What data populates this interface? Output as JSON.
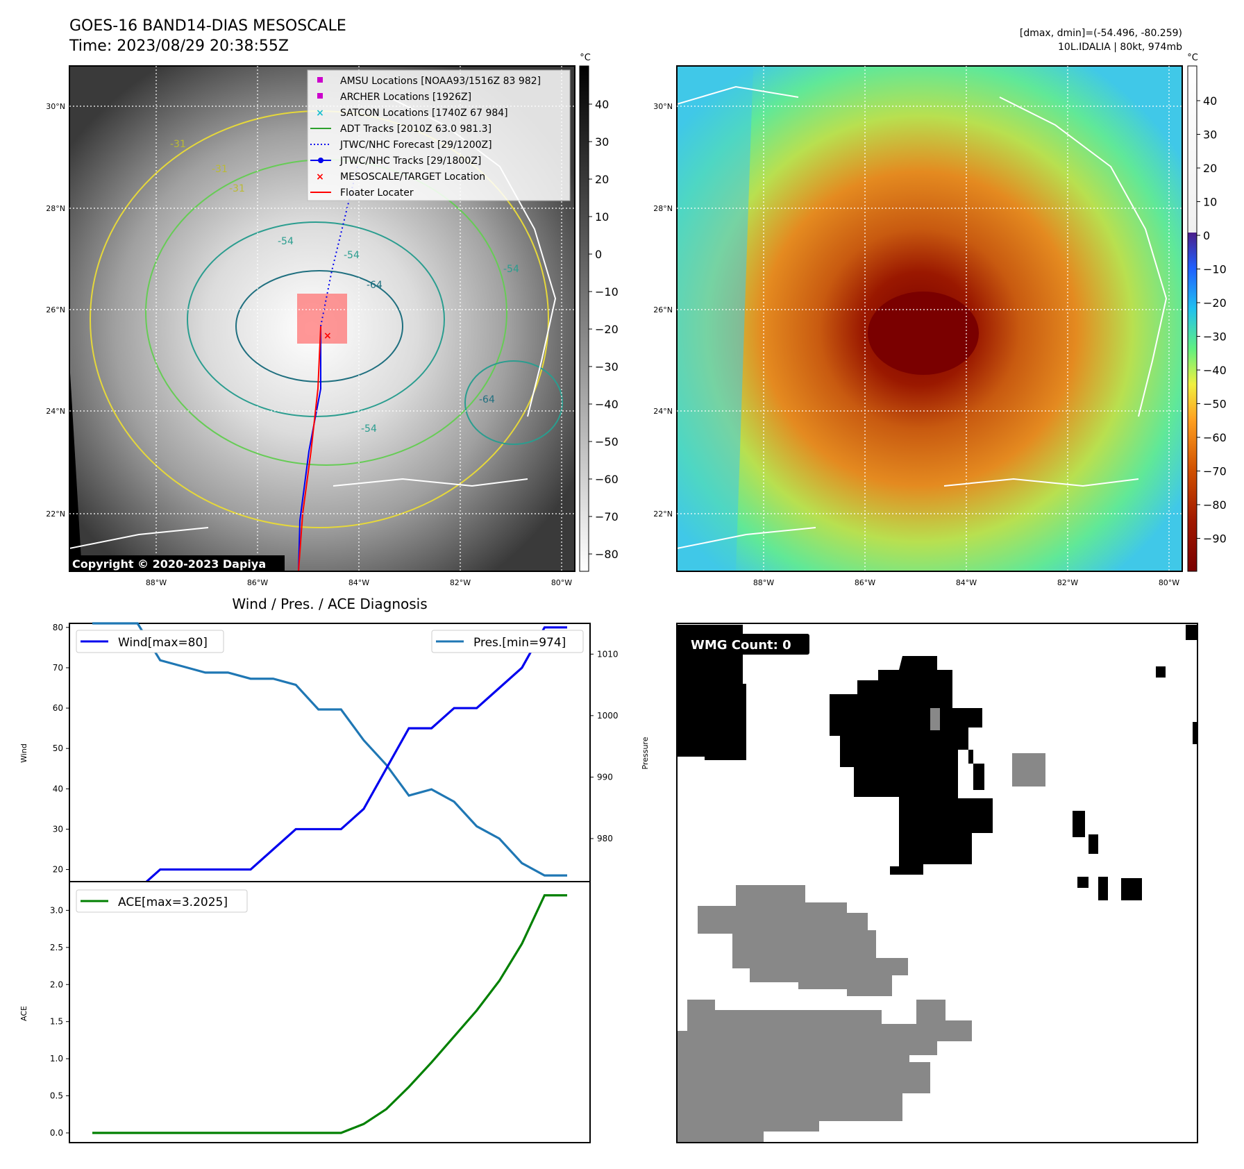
{
  "header": {
    "title_line1": "GOES-16 BAND14-DIAS MESOSCALE",
    "title_line2": "Time: 2023/08/29 20:38:55Z",
    "right_line1": "[dmax, dmin]=(-54.496, -80.259)",
    "right_line2": "10L.IDALIA | 80kt, 974mb"
  },
  "colors": {
    "wind": "#0000ee",
    "pressure": "#1f77b4",
    "ace": "#008000",
    "amsu": "#cc00cc",
    "satcon": "#17becf",
    "adt": "#2ca02c",
    "target": "#ff0000",
    "wmg_black": "#000000",
    "wmg_gray": "#888888"
  },
  "copyright": "Copyright © 2020-2023 Dapiya",
  "maps": {
    "lon_ticks": [
      "88°W",
      "86°W",
      "84°W",
      "82°W",
      "80°W"
    ],
    "lat_ticks": [
      "30°N",
      "28°N",
      "26°N",
      "24°N",
      "22°N"
    ],
    "colorbar_unit": "°C",
    "left_colorbar_ticks": [
      "40",
      "30",
      "20",
      "10",
      "0",
      "−10",
      "−20",
      "−30",
      "−40",
      "−50",
      "−60",
      "−70",
      "−80"
    ],
    "right_colorbar_ticks": [
      "40",
      "30",
      "20",
      "10",
      "0",
      "−10",
      "−20",
      "−30",
      "−40",
      "−50",
      "−60",
      "−70",
      "−80",
      "−90"
    ],
    "contour_labels": [
      "-31",
      "-31",
      "-54",
      "-54",
      "-64",
      "-54",
      "-64",
      "-54",
      "-31"
    ],
    "legend": [
      {
        "label": "AMSU Locations [NOAA93/1516Z 83 982]",
        "marker": "square",
        "color": "#cc00cc"
      },
      {
        "label": "ARCHER Locations [1926Z]",
        "marker": "square",
        "color": "#cc00cc"
      },
      {
        "label": "SATCON Locations [1740Z 67 984]",
        "marker": "x",
        "color": "#17becf"
      },
      {
        "label": "ADT Tracks [2010Z 63.0 981.3]",
        "marker": "line",
        "color": "#2ca02c"
      },
      {
        "label": "JTWC/NHC Forecast [29/1200Z]",
        "marker": "dotted",
        "color": "#0000ee"
      },
      {
        "label": "JTWC/NHC Tracks [29/1800Z]",
        "marker": "line-dot",
        "color": "#0000ee"
      },
      {
        "label": "MESOSCALE/TARGET Location",
        "marker": "x",
        "color": "#ff0000"
      },
      {
        "label": "Floater Locater",
        "marker": "line",
        "color": "#ff0000"
      }
    ]
  },
  "wmg": {
    "label": "WMG Count: 0"
  },
  "chart_data": [
    {
      "type": "line",
      "title": "Wind / Pres. / ACE Diagnosis",
      "ylabel": "Wind",
      "y2label": "Pressure",
      "x": [
        0,
        1,
        2,
        3,
        4,
        5,
        6,
        7,
        8,
        9,
        10,
        11,
        12,
        13,
        14,
        15,
        16,
        17,
        18,
        19,
        20,
        21
      ],
      "series": [
        {
          "name": "Wind[max=80]",
          "axis": "left",
          "values": [
            15,
            15,
            15,
            20,
            20,
            20,
            20,
            20,
            25,
            30,
            30,
            30,
            35,
            45,
            55,
            55,
            60,
            60,
            65,
            70,
            80,
            80
          ]
        },
        {
          "name": "Pres.[min=974]",
          "axis": "right",
          "values": [
            1015,
            1015,
            1015,
            1009,
            1008,
            1007,
            1007,
            1006,
            1006,
            1005,
            1001,
            1001,
            996,
            992,
            987,
            988,
            986,
            982,
            980,
            976,
            974,
            974
          ]
        }
      ],
      "ylim": [
        17,
        81
      ],
      "y2lim": [
        973,
        1015
      ],
      "yticks": [
        20,
        30,
        40,
        50,
        60,
        70,
        80
      ],
      "y2ticks": [
        980,
        990,
        1000,
        1010
      ],
      "legend": [
        "top-left",
        "top-right"
      ]
    },
    {
      "type": "line",
      "ylabel": "ACE",
      "x": [
        0,
        1,
        2,
        3,
        4,
        5,
        6,
        7,
        8,
        9,
        10,
        11,
        12,
        13,
        14,
        15,
        16,
        17,
        18,
        19,
        20,
        21
      ],
      "series": [
        {
          "name": "ACE[max=3.2025]",
          "values": [
            0,
            0,
            0,
            0,
            0,
            0,
            0,
            0,
            0,
            0,
            0,
            0,
            0.12,
            0.32,
            0.62,
            0.95,
            1.3,
            1.65,
            2.05,
            2.55,
            3.2025,
            3.2025
          ]
        }
      ],
      "ylim": [
        0,
        3.2
      ],
      "yticks": [
        "0.0",
        "0.5",
        "1.0",
        "1.5",
        "2.0",
        "2.5",
        "3.0"
      ],
      "legend": "top-left"
    }
  ]
}
